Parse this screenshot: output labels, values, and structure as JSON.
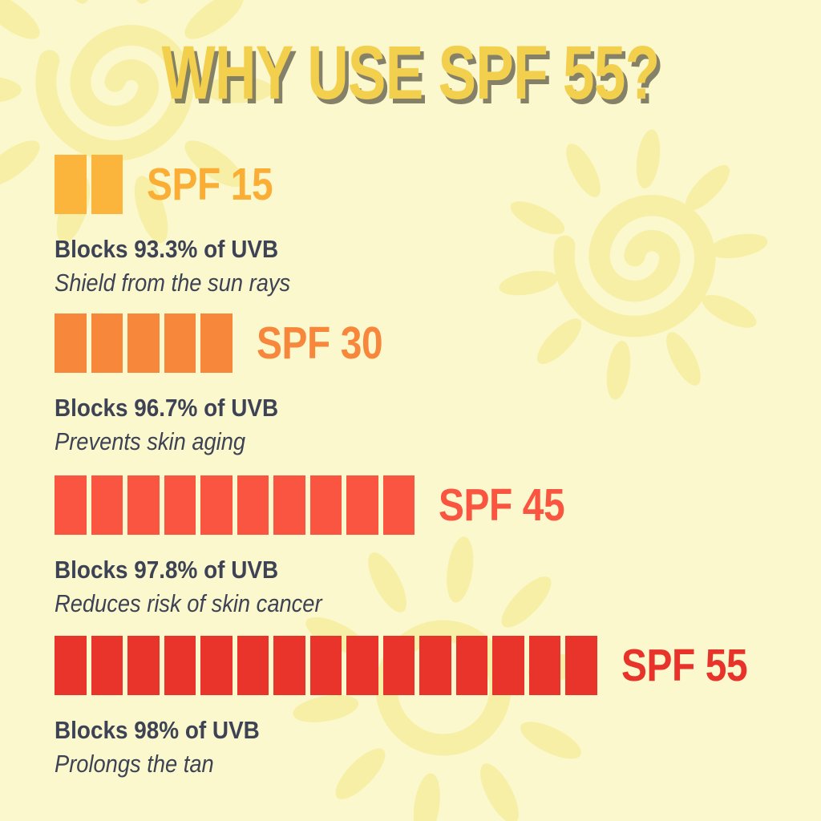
{
  "title": {
    "text": "WHY USE SPF 55?",
    "color": "#f2cf4c",
    "shadow_color": "#706c56"
  },
  "background": {
    "color": "#fbf8cd",
    "doodle_color": "#f7efa5",
    "doodles": [
      "sun-spiral-top-left",
      "sun-spiral-top-right",
      "sun-ring-bottom"
    ]
  },
  "text_color": "#3d4355",
  "sections": [
    {
      "id": "spf-15",
      "label": "SPF 15",
      "blocks": 2,
      "block_color": "#fbb43c",
      "label_color": "#faae35",
      "blocks_text": "Blocks 93.3% of UVB",
      "benefit": "Shield from the sun rays"
    },
    {
      "id": "spf-30",
      "label": "SPF 30",
      "blocks": 5,
      "block_color": "#f6873b",
      "label_color": "#f6873b",
      "blocks_text": "Blocks 96.7% of UVB",
      "benefit": "Prevents skin aging"
    },
    {
      "id": "spf-45",
      "label": "SPF 45",
      "blocks": 10,
      "block_color": "#fa5541",
      "label_color": "#f95540",
      "blocks_text": "Blocks 97.8% of UVB",
      "benefit": "Reduces risk of skin cancer"
    },
    {
      "id": "spf-55",
      "label": "SPF 55",
      "blocks": 15,
      "block_color": "#e8342a",
      "label_color": "#e73329",
      "blocks_text": "Blocks 98% of UVB",
      "benefit": "Prolongs the tan"
    }
  ],
  "chart_data": {
    "type": "bar",
    "categories": [
      "SPF 15",
      "SPF 30",
      "SPF 45",
      "SPF 55"
    ],
    "series": [
      {
        "name": "blocks_shown",
        "values": [
          2,
          5,
          10,
          15
        ]
      },
      {
        "name": "uvb_blocked_percent",
        "values": [
          93.3,
          96.7,
          97.8,
          98
        ]
      }
    ],
    "title": "WHY USE SPF 55?",
    "annotations": [
      "Shield from the sun rays",
      "Prevents skin aging",
      "Reduces risk of skin cancer",
      "Prolongs the tan"
    ],
    "legend_position": "none",
    "grid": false,
    "orientation": "horizontal"
  }
}
